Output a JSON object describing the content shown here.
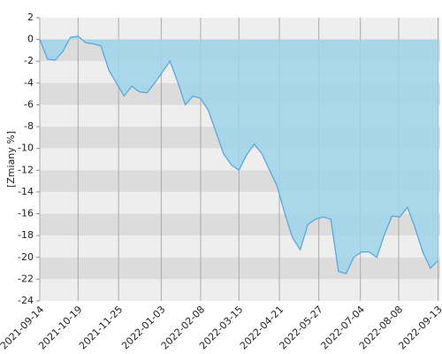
{
  "chart_data": {
    "type": "area",
    "y_label": "[Zmiany %]",
    "x": [
      "2021-09-14",
      "2021-09-21",
      "2021-09-28",
      "2021-10-05",
      "2021-10-12",
      "2021-10-19",
      "2021-10-26",
      "2021-11-02",
      "2021-11-09",
      "2021-11-16",
      "2021-11-23",
      "2021-11-30",
      "2021-12-07",
      "2021-12-14",
      "2021-12-21",
      "2021-12-28",
      "2022-01-04",
      "2022-01-11",
      "2022-01-18",
      "2022-01-25",
      "2022-02-01",
      "2022-02-08",
      "2022-02-15",
      "2022-02-22",
      "2022-03-01",
      "2022-03-08",
      "2022-03-15",
      "2022-03-22",
      "2022-03-29",
      "2022-04-05",
      "2022-04-12",
      "2022-04-19",
      "2022-04-26",
      "2022-05-03",
      "2022-05-10",
      "2022-05-17",
      "2022-05-24",
      "2022-05-31",
      "2022-06-07",
      "2022-06-14",
      "2022-06-21",
      "2022-06-28",
      "2022-07-05",
      "2022-07-12",
      "2022-07-19",
      "2022-07-26",
      "2022-08-02",
      "2022-08-09",
      "2022-08-16",
      "2022-08-23",
      "2022-08-30",
      "2022-09-06",
      "2022-09-13"
    ],
    "series": [
      {
        "color": "#4da6e0",
        "fill": "#9fd3ea",
        "values": [
          0,
          -1.8,
          -1.9,
          -1.1,
          0.2,
          0.3,
          -0.3,
          -0.4,
          -0.6,
          -2.8,
          -4.0,
          -5.2,
          -4.3,
          -4.8,
          -4.9,
          -4.0,
          -3.0,
          -2.0,
          -3.9,
          -6.0,
          -5.2,
          -5.4,
          -6.5,
          -8.5,
          -10.5,
          -11.5,
          -12.0,
          -10.6,
          -9.6,
          -10.5,
          -12.0,
          -13.5,
          -16.0,
          -18.2,
          -19.3,
          -17.0,
          -16.5,
          -16.3,
          -16.5,
          -21.3,
          -21.5,
          -20.0,
          -19.5,
          -19.5,
          -20.0,
          -17.9,
          -16.2,
          -16.3,
          -15.4,
          -17.3,
          -19.5,
          -21.0,
          -20.3
        ]
      }
    ],
    "xlim": [
      "2021-09-14",
      "2022-09-15"
    ],
    "xticks": [
      "2021-09-14",
      "2021-10-19",
      "2021-11-25",
      "2022-01-03",
      "2022-02-08",
      "2022-03-15",
      "2022-04-21",
      "2022-05-27",
      "2022-07-04",
      "2022-08-08",
      "2022-09-13"
    ],
    "ylim": [
      -24,
      2
    ],
    "yticks": [
      2,
      0,
      -2,
      -4,
      -6,
      -8,
      -10,
      -12,
      -14,
      -16,
      -18,
      -20,
      -22,
      -24
    ],
    "band_colors": [
      "#eeeeee",
      "#dcdcdc"
    ],
    "grid": true
  }
}
